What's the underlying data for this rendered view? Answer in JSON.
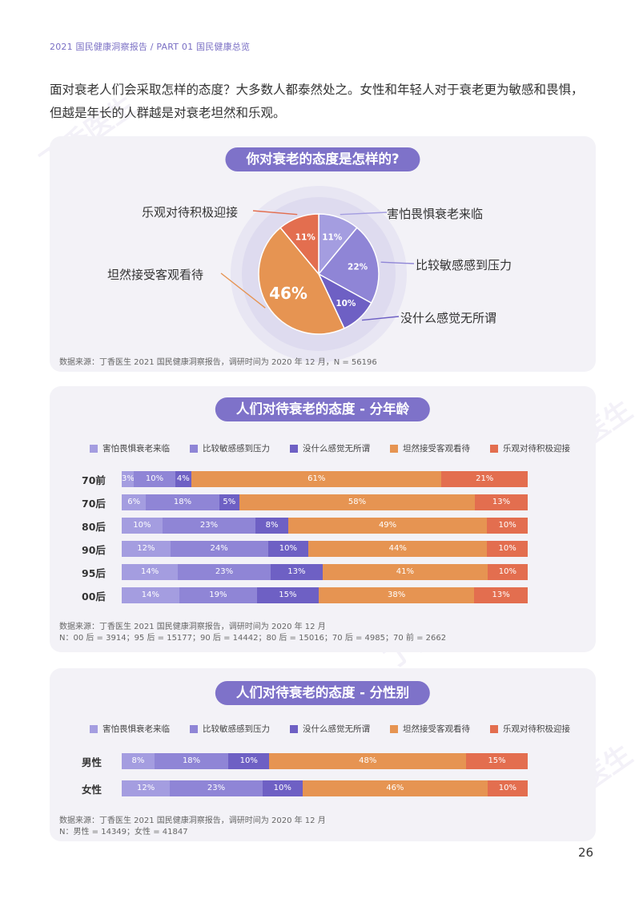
{
  "header": "2021 国民健康洞察报告 / PART 01 国民健康总览",
  "intro": "面对衰老人们会采取怎样的态度？大多数人都泰然处之。女性和年轻人对于衰老更为敏感和畏惧，但越是年长的人群越是对衰老坦然和乐观。",
  "watermark": "丁香医生",
  "colors": [
    "#a49de0",
    "#8f85d6",
    "#6e60c4",
    "#e69452",
    "#e36e4f"
  ],
  "legend": [
    "害怕畏惧衰老来临",
    "比较敏感感到压力",
    "没什么感觉无所谓",
    "坦然接受客观看待",
    "乐观对待积极迎接"
  ],
  "page_number": "26",
  "chart_data": [
    {
      "type": "pie",
      "title": "你对衰老的态度是怎样的?",
      "labels": [
        "害怕畏惧衰老来临",
        "比较敏感感到压力",
        "没什么感觉无所谓",
        "坦然接受客观看待",
        "乐观对待积极迎接"
      ],
      "values": [
        11,
        22,
        10,
        46,
        11
      ],
      "value_labels": [
        "11%",
        "22%",
        "10%",
        "46%",
        "11%"
      ],
      "source": "数据来源：丁香医生 2021 国民健康洞察报告，调研时间为 2020 年 12 月，N = 56196"
    },
    {
      "type": "bar",
      "orientation": "horizontal",
      "stacked": true,
      "title": "人们对待衰老的态度 - 分年龄",
      "categories": [
        "70前",
        "70后",
        "80后",
        "90后",
        "95后",
        "00后"
      ],
      "series": [
        {
          "name": "害怕畏惧衰老来临",
          "values": [
            3,
            6,
            10,
            12,
            14,
            14
          ]
        },
        {
          "name": "比较敏感感到压力",
          "values": [
            10,
            18,
            23,
            24,
            23,
            19
          ]
        },
        {
          "name": "没什么感觉无所谓",
          "values": [
            4,
            5,
            8,
            10,
            13,
            15
          ]
        },
        {
          "name": "坦然接受客观看待",
          "values": [
            61,
            58,
            49,
            44,
            41,
            38
          ]
        },
        {
          "name": "乐观对待积极迎接",
          "values": [
            21,
            13,
            10,
            10,
            10,
            13
          ]
        }
      ],
      "source": [
        "数据来源：丁香医生 2021 国民健康洞察报告，调研时间为 2020 年 12 月",
        "N：00 后 = 3914；95 后 = 15177；90 后 = 14442；80 后 = 15016；70 后 = 4985；70 前 = 2662"
      ]
    },
    {
      "type": "bar",
      "orientation": "horizontal",
      "stacked": true,
      "title": "人们对待衰老的态度 - 分性别",
      "categories": [
        "男性",
        "女性"
      ],
      "series": [
        {
          "name": "害怕畏惧衰老来临",
          "values": [
            8,
            12
          ]
        },
        {
          "name": "比较敏感感到压力",
          "values": [
            18,
            23
          ]
        },
        {
          "name": "没什么感觉无所谓",
          "values": [
            10,
            10
          ]
        },
        {
          "name": "坦然接受客观看待",
          "values": [
            48,
            46
          ]
        },
        {
          "name": "乐观对待积极迎接",
          "values": [
            15,
            10
          ]
        }
      ],
      "source": [
        "数据来源：丁香医生 2021 国民健康洞察报告，调研时间为 2020 年 12 月",
        "N：男性 = 14349；女性 = 41847"
      ]
    }
  ]
}
